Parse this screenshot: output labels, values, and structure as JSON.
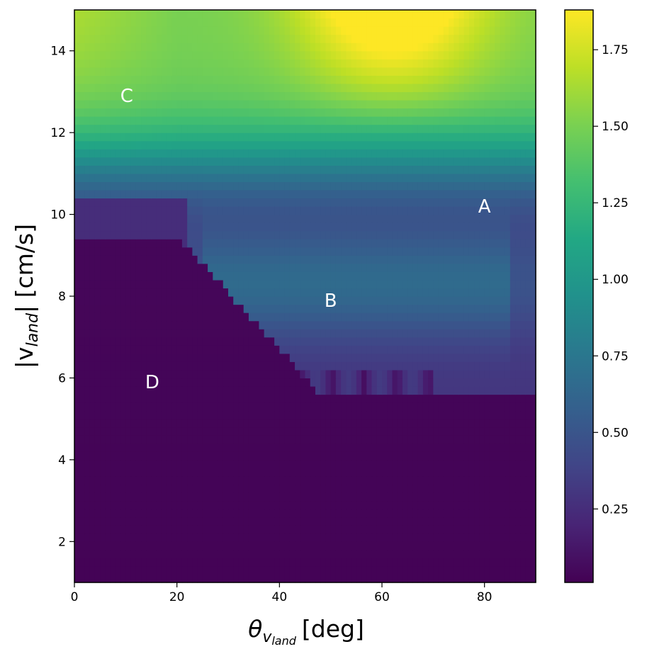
{
  "chart_data": {
    "type": "heatmap",
    "colormap": "viridis",
    "xlabel_symbol": "θ",
    "xlabel_subscript": "v",
    "xlabel_subsubscript": "land",
    "xlabel_unit": "[deg]",
    "ylabel_prefix": "|v",
    "ylabel_subscript": "land",
    "ylabel_suffix": "| [cm/s]",
    "xlim": [
      0,
      90
    ],
    "ylim": [
      1,
      15
    ],
    "xticks": [
      0,
      20,
      40,
      60,
      80
    ],
    "xtick_labels": [
      "0",
      "20",
      "40",
      "60",
      "80"
    ],
    "yticks": [
      2,
      4,
      6,
      8,
      10,
      12,
      14
    ],
    "ytick_labels": [
      "2",
      "4",
      "6",
      "8",
      "10",
      "12",
      "14"
    ],
    "colorbar": {
      "range": [
        0.01,
        1.88
      ],
      "ticks": [
        0.25,
        0.5,
        0.75,
        1.0,
        1.25,
        1.5,
        1.75
      ],
      "tick_labels": [
        "0.25",
        "0.50",
        "0.75",
        "1.00",
        "1.25",
        "1.50",
        "1.75"
      ]
    },
    "grid_resolution": {
      "nx": 90,
      "ny": 70
    },
    "value_description": "≈0.02 below the 5.7–9.5 cm/s boundary; ≈0.3–0.6 band in region B; ≈0.4 near A; ≈1.4–1.6 at top-left (C); max ≈1.88 near θ≈60°, |v|≈15 cm/s",
    "annotations": [
      {
        "text": "A",
        "x": 80,
        "y": 10.2
      },
      {
        "text": "B",
        "x": 50,
        "y": 7.9
      },
      {
        "text": "C",
        "x": 10.2,
        "y": 12.9
      },
      {
        "text": "D",
        "x": 15.2,
        "y": 5.9
      }
    ],
    "legend": "none",
    "grid": false
  }
}
